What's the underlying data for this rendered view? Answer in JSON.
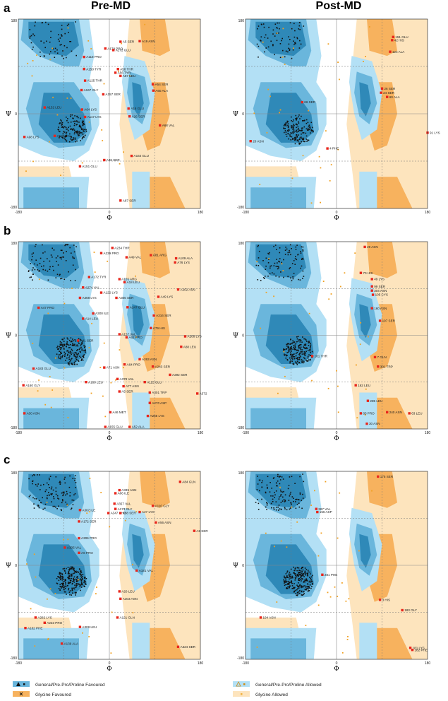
{
  "column_titles": [
    "Pre-MD",
    "Post-MD"
  ],
  "panel_letters": [
    "a",
    "b",
    "c"
  ],
  "axis": {
    "x_symbol": "Φ",
    "y_symbol": "Ψ",
    "range": [
      -180,
      180
    ],
    "ticks": [
      "-180",
      "0",
      "180"
    ]
  },
  "colors": {
    "general_favoured_dark": "#2f89b8",
    "general_favoured_mid": "#6ab6dc",
    "general_allowed": "#b3e0f5",
    "glycine_favoured": "#f7b25e",
    "glycine_allowed": "#fde4bd",
    "residue_dot": "#111111",
    "allowed_dot": "#f0a020",
    "outlier_marker": "#e8261c"
  },
  "legend": {
    "items": [
      {
        "label": "General/Pre-Pro/Proline Favoured",
        "marker": "triangle-square-icon"
      },
      {
        "label": "General/Pre-Pro/Proline Allowed",
        "marker": "triangle-square-outline-icon"
      },
      {
        "label": "Glycine Favoured",
        "marker": "cross-icon"
      },
      {
        "label": "Glycine Allowed",
        "marker": "small-square-icon"
      }
    ]
  },
  "chart_data": [
    {
      "id": "a-pre",
      "type": "scatter",
      "title": "Pre-MD",
      "panel": "a",
      "xlabel": "Φ",
      "ylabel": "Ψ",
      "xlim": [
        -180,
        180
      ],
      "ylim": [
        -180,
        180
      ],
      "outliers": [
        {
          "label": "A5 SER",
          "phi": 22,
          "psi": 137
        },
        {
          "label": "A19 ASN",
          "phi": 60,
          "psi": 138
        },
        {
          "label": "A178 PRO",
          "phi": -8,
          "psi": 124
        },
        {
          "label": "A172 GLU",
          "phi": 8,
          "psi": 121
        },
        {
          "label": "A118 PRO",
          "phi": -50,
          "psi": 108
        },
        {
          "label": "A150 TYR",
          "phi": -50,
          "psi": 85
        },
        {
          "label": "A58 THR",
          "phi": 17,
          "psi": 85
        },
        {
          "label": "A56 TYR",
          "phi": 12,
          "psi": 78
        },
        {
          "label": "A57 LEU",
          "phi": 22,
          "psi": 72
        },
        {
          "label": "A125 THR",
          "phi": -48,
          "psi": 63
        },
        {
          "label": "A54 SER",
          "phi": 86,
          "psi": 56
        },
        {
          "label": "A167 GLY",
          "phi": -55,
          "psi": 45
        },
        {
          "label": "A60 ALA",
          "phi": 87,
          "psi": 44
        },
        {
          "label": "A157 SER",
          "phi": -12,
          "psi": 37
        },
        {
          "label": "A16 GLU",
          "phi": 38,
          "psi": 10
        },
        {
          "label": "A152 LEU",
          "phi": -128,
          "psi": 12
        },
        {
          "label": "A64 LYS",
          "phi": -54,
          "psi": 8
        },
        {
          "label": "A26 SER",
          "phi": 40,
          "psi": -5
        },
        {
          "label": "A117 LYS",
          "phi": -48,
          "psi": -6
        },
        {
          "label": "A68 VAL",
          "phi": 100,
          "psi": -22
        },
        {
          "label": "A98 LYS",
          "phi": -168,
          "psi": -44
        },
        {
          "label": "A130 VAL",
          "phi": -108,
          "psi": -42
        },
        {
          "label": "A164 GLU",
          "phi": 44,
          "psi": -80
        },
        {
          "label": "A36 SER",
          "phi": -10,
          "psi": -88
        },
        {
          "label": "A151 GLU",
          "phi": -58,
          "psi": -100
        },
        {
          "label": "A87 SER",
          "phi": 22,
          "psi": -165
        }
      ]
    },
    {
      "id": "a-post",
      "type": "scatter",
      "title": "Post-MD",
      "panel": "a",
      "xlabel": "Φ",
      "ylabel": "Ψ",
      "xlim": [
        -180,
        180
      ],
      "ylim": [
        -180,
        180
      ],
      "outliers": [
        {
          "label": "151 GLU",
          "phi": 112,
          "psi": 146
        },
        {
          "label": "42 HIS",
          "phi": 110,
          "psi": 140
        },
        {
          "label": "124 ALA",
          "phi": 106,
          "psi": 118
        },
        {
          "label": "26 SER",
          "phi": 90,
          "psi": 48
        },
        {
          "label": "24 SER",
          "phi": 88,
          "psi": 40
        },
        {
          "label": "60 ALA",
          "phi": 100,
          "psi": 32
        },
        {
          "label": "66 SER",
          "phi": -68,
          "psi": 22
        },
        {
          "label": "91 LYS",
          "phi": 180,
          "psi": -36
        },
        {
          "label": "20 ASN",
          "phi": -170,
          "psi": -52
        },
        {
          "label": "4 PHE",
          "phi": -18,
          "psi": -66
        }
      ]
    },
    {
      "id": "b-pre",
      "type": "scatter",
      "title": "Pre-MD",
      "panel": "b",
      "xlabel": "Φ",
      "ylabel": "Ψ",
      "xlim": [
        -180,
        180
      ],
      "ylim": [
        -180,
        180
      ],
      "outliers": [
        {
          "label": "A239 PRO",
          "phi": -16,
          "psi": 158
        },
        {
          "label": "A234 THR",
          "phi": 6,
          "psi": 168
        },
        {
          "label": "A81 ARG",
          "phi": 82,
          "psi": 154
        },
        {
          "label": "A49 VAL",
          "phi": 34,
          "psi": 150
        },
        {
          "label": "A109 ALA",
          "phi": 132,
          "psi": 148
        },
        {
          "label": "A76 LYS",
          "phi": 130,
          "psi": 140
        },
        {
          "label": "A172 TYR",
          "phi": -40,
          "psi": 112
        },
        {
          "label": "A165 ARG",
          "phi": 20,
          "psi": 108
        },
        {
          "label": "A18 LEU",
          "phi": 30,
          "psi": 102
        },
        {
          "label": "A274 VAL",
          "phi": -52,
          "psi": 92
        },
        {
          "label": "A122 LYS",
          "phi": -16,
          "psi": 82
        },
        {
          "label": "A202 ASN",
          "phi": 136,
          "psi": 88
        },
        {
          "label": "A368 LYS",
          "phi": -58,
          "psi": 72
        },
        {
          "label": "A305 SER",
          "phi": 14,
          "psi": 72
        },
        {
          "label": "A49 LYS",
          "phi": 97,
          "psi": 74
        },
        {
          "label": "A47 PRO",
          "phi": -140,
          "psi": 53
        },
        {
          "label": "A247 GLU",
          "phi": 36,
          "psi": 54
        },
        {
          "label": "A300 ILE",
          "phi": -32,
          "psi": 42
        },
        {
          "label": "A14 LEU",
          "phi": -52,
          "psi": 32
        },
        {
          "label": "A316 SER",
          "phi": 88,
          "psi": 38
        },
        {
          "label": "A79 HIS",
          "phi": 82,
          "psi": 14
        },
        {
          "label": "A157 VAL",
          "phi": 20,
          "psi": 2
        },
        {
          "label": "A62 PRO",
          "phi": 34,
          "psi": -4
        },
        {
          "label": "A206 LYS",
          "phi": 150,
          "psi": -2
        },
        {
          "label": "A88 LEU",
          "phi": 142,
          "psi": -22
        },
        {
          "label": "A41 SER",
          "phi": -62,
          "psi": -10
        },
        {
          "label": "A263 ASN",
          "phi": 60,
          "psi": -46
        },
        {
          "label": "A64 PRO",
          "phi": 30,
          "psi": -56
        },
        {
          "label": "A243 SER",
          "phi": 86,
          "psi": -60
        },
        {
          "label": "A183 GLU",
          "phi": -150,
          "psi": -64
        },
        {
          "label": "A71 ASN",
          "phi": -10,
          "psi": -62
        },
        {
          "label": "A292 SER",
          "phi": 120,
          "psi": -76
        },
        {
          "label": "A378 VAL",
          "phi": 16,
          "psi": -84
        },
        {
          "label": "A188 LEU",
          "phi": -46,
          "psi": -90
        },
        {
          "label": "A115 GLU",
          "phi": 70,
          "psi": -90
        },
        {
          "label": "A160 GLY",
          "phi": -170,
          "psi": -96
        },
        {
          "label": "A77 ASN",
          "phi": 28,
          "psi": -98
        },
        {
          "label": "A5 SER",
          "phi": 20,
          "psi": -108
        },
        {
          "label": "A301 TRP",
          "phi": 80,
          "psi": -110
        },
        {
          "label": "A372",
          "phi": 174,
          "psi": -112
        },
        {
          "label": "A30 ASN",
          "phi": -168,
          "psi": -150
        },
        {
          "label": "A270 ASP",
          "phi": 80,
          "psi": -130
        },
        {
          "label": "A46 MET",
          "phi": 2,
          "psi": -148
        },
        {
          "label": "A265 LYS",
          "phi": 76,
          "psi": -155
        },
        {
          "label": "A155 GLU",
          "phi": -8,
          "psi": -176
        },
        {
          "label": "A52 ALA",
          "phi": 40,
          "psi": -176
        }
      ]
    },
    {
      "id": "b-post",
      "type": "scatter",
      "title": "Post-MD",
      "panel": "b",
      "xlabel": "Φ",
      "ylabel": "Ψ",
      "xlim": [
        -180,
        180
      ],
      "ylim": [
        -180,
        180
      ],
      "outliers": [
        {
          "label": "29 ASN",
          "phi": 56,
          "psi": 170
        },
        {
          "label": "70 HIS",
          "phi": 48,
          "psi": 120
        },
        {
          "label": "49 LYS",
          "phi": 70,
          "psi": 108
        },
        {
          "label": "99 SER",
          "phi": 70,
          "psi": 94
        },
        {
          "label": "304 ASN",
          "phi": 70,
          "psi": 86
        },
        {
          "label": "105 CYS",
          "phi": 72,
          "psi": 78
        },
        {
          "label": "160 ASN",
          "phi": 70,
          "psi": 52
        },
        {
          "label": "197 SER",
          "phi": 86,
          "psi": 28
        },
        {
          "label": "181 THR",
          "phi": -48,
          "psi": -40
        },
        {
          "label": "7 GLN",
          "phi": 76,
          "psi": -42
        },
        {
          "label": "301 TRP",
          "phi": 82,
          "psi": -60
        },
        {
          "label": "162 LEU",
          "phi": 38,
          "psi": -96
        },
        {
          "label": "285 LEU",
          "phi": 62,
          "psi": -126
        },
        {
          "label": "85 PRO",
          "phi": 48,
          "psi": -150
        },
        {
          "label": "240 ASN",
          "phi": 100,
          "psi": -148
        },
        {
          "label": "63 LEU",
          "phi": 144,
          "psi": -150
        },
        {
          "label": "30 ASN",
          "phi": 60,
          "psi": -170
        }
      ]
    },
    {
      "id": "c-pre",
      "type": "scatter",
      "title": "Pre-MD",
      "panel": "c",
      "xlabel": "Φ",
      "ylabel": "Ψ",
      "xlim": [
        -180,
        180
      ],
      "ylim": [
        -180,
        180
      ],
      "outliers": [
        {
          "label": "A84 GLN",
          "phi": 140,
          "psi": 160
        },
        {
          "label": "A335 ASN",
          "phi": 20,
          "psi": 144
        },
        {
          "label": "A66 ILE",
          "phi": 12,
          "psi": 138
        },
        {
          "label": "A357 VAL",
          "phi": 10,
          "psi": 118
        },
        {
          "label": "A110 GLY",
          "phi": 86,
          "psi": 114
        },
        {
          "label": "A367 ILE",
          "phi": -58,
          "psi": 106
        },
        {
          "label": "A173 GLY",
          "phi": 12,
          "psi": 108
        },
        {
          "label": "A347 PHE",
          "phi": -2,
          "psi": 100
        },
        {
          "label": "A27 LYS",
          "phi": 60,
          "psi": 102
        },
        {
          "label": "A88 SER",
          "phi": 22,
          "psi": 100
        },
        {
          "label": "A172 SER",
          "phi": -60,
          "psi": 84
        },
        {
          "label": "A56 ASN",
          "phi": 92,
          "psi": 82
        },
        {
          "label": "A9 SER",
          "phi": 168,
          "psi": 66
        },
        {
          "label": "A306 PRO",
          "phi": -60,
          "psi": 52
        },
        {
          "label": "A305 VAL",
          "phi": -88,
          "psi": 34
        },
        {
          "label": "A6 PRO",
          "phi": -60,
          "psi": 24
        },
        {
          "label": "A181 VAL",
          "phi": 54,
          "psi": -10
        },
        {
          "label": "A20 LEU",
          "phi": 20,
          "psi": -50
        },
        {
          "label": "A303 ASN",
          "phi": 22,
          "psi": -64
        },
        {
          "label": "A121 GLN",
          "phi": 16,
          "psi": -100
        },
        {
          "label": "A282 LYS",
          "phi": -146,
          "psi": -100
        },
        {
          "label": "A233 PRO",
          "phi": -128,
          "psi": -110
        },
        {
          "label": "A182 PHE",
          "phi": -166,
          "psi": -120
        },
        {
          "label": "A308 LEU",
          "phi": -58,
          "psi": -118
        },
        {
          "label": "A139 ALA",
          "phi": -94,
          "psi": -150
        },
        {
          "label": "A324 SER",
          "phi": 136,
          "psi": -156
        }
      ]
    },
    {
      "id": "c-post",
      "type": "scatter",
      "title": "Post-MD",
      "panel": "c",
      "xlabel": "Φ",
      "ylabel": "Ψ",
      "xlim": [
        -180,
        180
      ],
      "ylim": [
        -180,
        180
      ],
      "outliers": [
        {
          "label": "175 SER",
          "phi": 82,
          "psi": 170
        },
        {
          "label": "367 VAL",
          "phi": -40,
          "psi": 108
        },
        {
          "label": "156 ASP",
          "phi": -38,
          "psi": 102
        },
        {
          "label": "281 PHE",
          "phi": -28,
          "psi": -18
        },
        {
          "label": "3 HIS",
          "phi": 86,
          "psi": -66
        },
        {
          "label": "183 GLY",
          "phi": 130,
          "psi": -86
        },
        {
          "label": "194 ASN",
          "phi": -150,
          "psi": -100
        },
        {
          "label": "181 LYS",
          "phi": 146,
          "psi": -158
        },
        {
          "label": "182 PHE",
          "phi": 150,
          "psi": -162
        }
      ]
    }
  ]
}
